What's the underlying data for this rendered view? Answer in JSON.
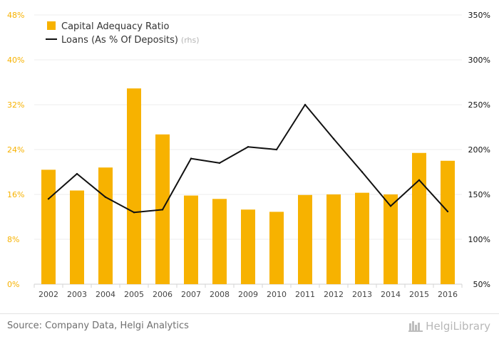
{
  "chart_data": {
    "type": "bar+line",
    "categories": [
      "2002",
      "2003",
      "2004",
      "2005",
      "2006",
      "2007",
      "2008",
      "2009",
      "2010",
      "2011",
      "2012",
      "2013",
      "2014",
      "2015",
      "2016"
    ],
    "series": [
      {
        "name": "Capital Adequacy Ratio",
        "kind": "bar",
        "axis": "left",
        "color": "#f7b200",
        "values": [
          20.4,
          16.7,
          20.8,
          34.9,
          26.7,
          15.8,
          15.2,
          13.3,
          12.9,
          15.9,
          16.0,
          16.3,
          16.0,
          23.4,
          22.0
        ]
      },
      {
        "name": "Loans (As % Of Deposits)",
        "name_suffix": "(rhs)",
        "kind": "line",
        "axis": "right",
        "color": "#111111",
        "values": [
          145,
          173,
          147,
          130,
          133,
          190,
          185,
          203,
          200,
          250,
          212,
          175,
          137,
          166,
          131
        ]
      }
    ],
    "left_axis": {
      "min": 0,
      "max": 48,
      "step": 8,
      "ticks": [
        "0%",
        "8%",
        "16%",
        "24%",
        "32%",
        "40%",
        "48%"
      ],
      "color": "#f7b200"
    },
    "right_axis": {
      "min": 50,
      "max": 350,
      "step": 50,
      "ticks": [
        "50%",
        "100%",
        "150%",
        "200%",
        "250%",
        "300%",
        "350%"
      ],
      "color": "#111111"
    },
    "grid": true,
    "legend_position": "top-left"
  },
  "footer": {
    "source": "Source: Company Data, Helgi Analytics",
    "brand": "HelgiLibrary"
  }
}
